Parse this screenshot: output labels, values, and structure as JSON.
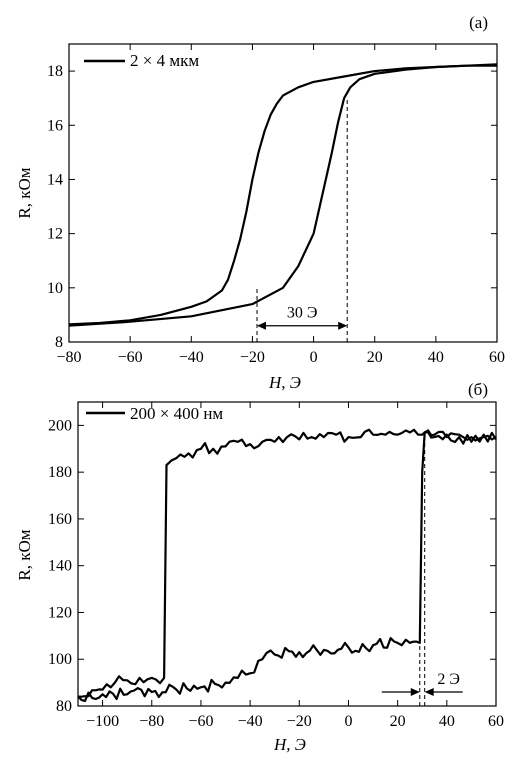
{
  "chart_data": [
    {
      "type": "line",
      "panel_label": "(a)",
      "legend_label": "2 × 4 мкм",
      "xlabel": "H, Э",
      "ylabel": "R, кОм",
      "xlim": [
        -80,
        60
      ],
      "ylim": [
        8,
        19
      ],
      "xticks": [
        -80,
        -60,
        -40,
        -20,
        0,
        20,
        40,
        60
      ],
      "yticks": [
        8,
        10,
        12,
        14,
        16,
        18
      ],
      "x_tick_labels": [
        "−80",
        "−60",
        "−40",
        "−20",
        "0",
        "20",
        "40",
        "60"
      ],
      "y_tick_labels": [
        "8",
        "10",
        "12",
        "14",
        "16",
        "18"
      ],
      "series": [
        {
          "x": [
            60,
            50,
            40,
            30,
            20,
            10,
            0,
            -5,
            -10,
            -12,
            -14,
            -16,
            -18,
            -20,
            -22,
            -24,
            -26,
            -28,
            -30,
            -35,
            -40,
            -50,
            -60,
            -70,
            -80
          ],
          "y": [
            18.2,
            18.2,
            18.15,
            18.1,
            18.0,
            17.8,
            17.6,
            17.4,
            17.1,
            16.8,
            16.4,
            15.8,
            15.0,
            14.0,
            12.8,
            11.8,
            11.0,
            10.3,
            9.9,
            9.5,
            9.3,
            9.0,
            8.8,
            8.7,
            8.65
          ]
        },
        {
          "x": [
            -80,
            -60,
            -40,
            -20,
            -10,
            -5,
            0,
            2,
            4,
            6,
            8,
            10,
            12,
            15,
            20,
            30,
            40,
            50,
            60
          ],
          "y": [
            8.6,
            8.75,
            8.95,
            9.4,
            10.0,
            10.8,
            12.0,
            13.0,
            14.0,
            15.0,
            16.1,
            17.0,
            17.4,
            17.7,
            17.9,
            18.05,
            18.15,
            18.2,
            18.25
          ]
        }
      ],
      "annotations": [
        {
          "type": "vline",
          "x": -18.5,
          "y_range": [
            8,
            10
          ]
        },
        {
          "type": "vline",
          "x": 11,
          "y_range": [
            8,
            17
          ]
        },
        {
          "type": "double_arrow",
          "x_range": [
            -18.5,
            11
          ],
          "y": 8.6,
          "label": "30 Э"
        }
      ]
    },
    {
      "type": "line",
      "panel_label": "(б)",
      "legend_label": "200 × 400 нм",
      "xlabel": "H, Э",
      "ylabel": "R, кОм",
      "xlim": [
        -110,
        60
      ],
      "ylim": [
        80,
        210
      ],
      "xticks": [
        -100,
        -80,
        -60,
        -40,
        -20,
        0,
        20,
        40,
        60
      ],
      "yticks": [
        80,
        100,
        120,
        140,
        160,
        180,
        200
      ],
      "x_tick_labels": [
        "−100",
        "−80",
        "−60",
        "−40",
        "−20",
        "0",
        "20",
        "40",
        "60"
      ],
      "y_tick_labels": [
        "80",
        "100",
        "120",
        "140",
        "160",
        "180",
        "200"
      ],
      "series": [
        {
          "x": [
            60,
            55,
            50,
            45,
            40,
            35,
            31,
            30,
            25,
            20,
            15,
            10,
            5,
            0,
            -5,
            -10,
            -15,
            -20,
            -25,
            -30,
            -35,
            -40,
            -45,
            -50,
            -55,
            -60,
            -65,
            -70,
            -72,
            -73,
            -74,
            -75,
            -80,
            -85,
            -90,
            -95,
            -100,
            -110
          ],
          "y": [
            194,
            196,
            193,
            195,
            196,
            195,
            197,
            196,
            197,
            196,
            196,
            196,
            195,
            195,
            196,
            195,
            195,
            194,
            195,
            193,
            193,
            192,
            193,
            191,
            190,
            190,
            188,
            186,
            185,
            184,
            183,
            92,
            92,
            92,
            91,
            90,
            87,
            84
          ]
        },
        {
          "x": [
            -110,
            -100,
            -90,
            -80,
            -70,
            -60,
            -50,
            -45,
            -40,
            -35,
            -30,
            -20,
            -10,
            0,
            10,
            20,
            25,
            29,
            30,
            31,
            35,
            40,
            45,
            50,
            55,
            60
          ],
          "y": [
            84,
            85,
            85,
            86,
            87,
            88,
            90,
            92,
            94,
            100,
            102,
            103,
            104,
            105,
            106,
            107,
            107,
            107,
            180,
            197,
            196,
            195,
            196,
            195,
            195,
            195
          ]
        }
      ],
      "annotations": [
        {
          "type": "vline",
          "x": 29,
          "y_range": [
            80,
            107
          ]
        },
        {
          "type": "vline",
          "x": 31,
          "y_range": [
            80,
            197
          ]
        },
        {
          "type": "arrow_pair",
          "x_range": [
            29,
            31
          ],
          "y": 86,
          "label": "2 Э"
        }
      ]
    }
  ]
}
